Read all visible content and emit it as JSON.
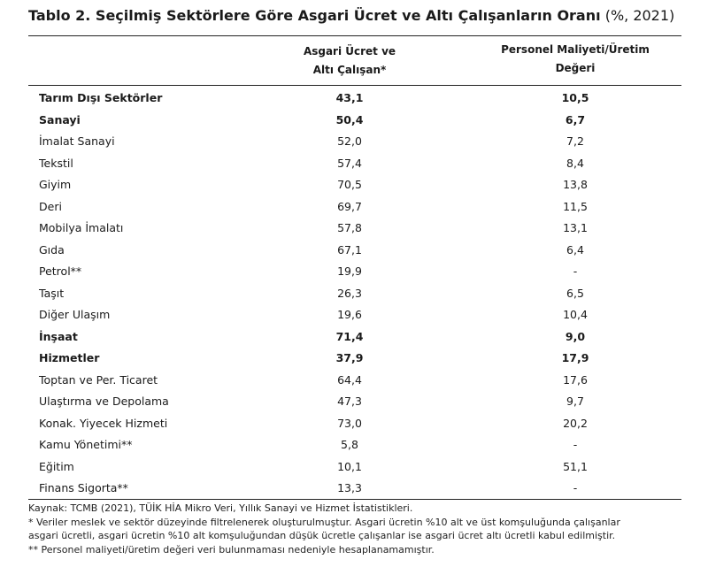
{
  "title": {
    "bold": "Tablo 2. Seçilmiş Sektörlere Göre Asgari Ücret ve Altı Çalışanların Oranı",
    "suffix": " (%, 2021)"
  },
  "headers": {
    "col1_line1": "Asgari Ücret ve",
    "col1_line2": "Altı Çalışan*",
    "col2_line1": "Personel Maliyeti/Üretim",
    "col2_line2": "Değeri"
  },
  "rows": [
    {
      "name": "Tarım Dışı Sektörler",
      "v1": "43,1",
      "v2": "10,5",
      "bold": true
    },
    {
      "name": "Sanayi",
      "v1": "50,4",
      "v2": "6,7",
      "bold": true
    },
    {
      "name": "İmalat Sanayi",
      "v1": "52,0",
      "v2": "7,2",
      "bold": false
    },
    {
      "name": "Tekstil",
      "v1": "57,4",
      "v2": "8,4",
      "bold": false
    },
    {
      "name": "Giyim",
      "v1": "70,5",
      "v2": "13,8",
      "bold": false
    },
    {
      "name": "Deri",
      "v1": "69,7",
      "v2": "11,5",
      "bold": false
    },
    {
      "name": "Mobilya İmalatı",
      "v1": "57,8",
      "v2": "13,1",
      "bold": false
    },
    {
      "name": "Gıda",
      "v1": "67,1",
      "v2": "6,4",
      "bold": false
    },
    {
      "name": "Petrol**",
      "v1": "19,9",
      "v2": "-",
      "bold": false
    },
    {
      "name": "Taşıt",
      "v1": "26,3",
      "v2": "6,5",
      "bold": false
    },
    {
      "name": "Diğer Ulaşım",
      "v1": "19,6",
      "v2": "10,4",
      "bold": false
    },
    {
      "name": "İnşaat",
      "v1": "71,4",
      "v2": "9,0",
      "bold": true
    },
    {
      "name": "Hizmetler",
      "v1": "37,9",
      "v2": "17,9",
      "bold": true
    },
    {
      "name": "Toptan ve Per. Ticaret",
      "v1": "64,4",
      "v2": "17,6",
      "bold": false
    },
    {
      "name": "Ulaştırma ve Depolama",
      "v1": "47,3",
      "v2": "9,7",
      "bold": false
    },
    {
      "name": "Konak. Yiyecek Hizmeti",
      "v1": "73,0",
      "v2": "20,2",
      "bold": false
    },
    {
      "name": "Kamu Yönetimi**",
      "v1": "5,8",
      "v2": "-",
      "bold": false
    },
    {
      "name": "Eğitim",
      "v1": "10,1",
      "v2": "51,1",
      "bold": false
    },
    {
      "name": "Finans Sigorta**",
      "v1": "13,3",
      "v2": "-",
      "bold": false
    }
  ],
  "notes": {
    "source": "Kaynak: TCMB (2021), TÜİK HİA Mikro Veri, Yıllık Sanayi ve Hizmet İstatistikleri.",
    "note1_line1": "* Veriler meslek ve sektör düzeyinde filtrelenerek oluşturulmuştur. Asgari ücretin %10 alt ve üst komşuluğunda çalışanlar",
    "note1_line2": "asgari ücretli, asgari ücretin %10 alt komşuluğundan düşük ücretle çalışanlar ise asgari ücret altı ücretli kabul edilmiştir.",
    "note2": "** Personel maliyeti/üretim değeri veri bulunmaması nedeniyle hesaplanamamıştır."
  }
}
